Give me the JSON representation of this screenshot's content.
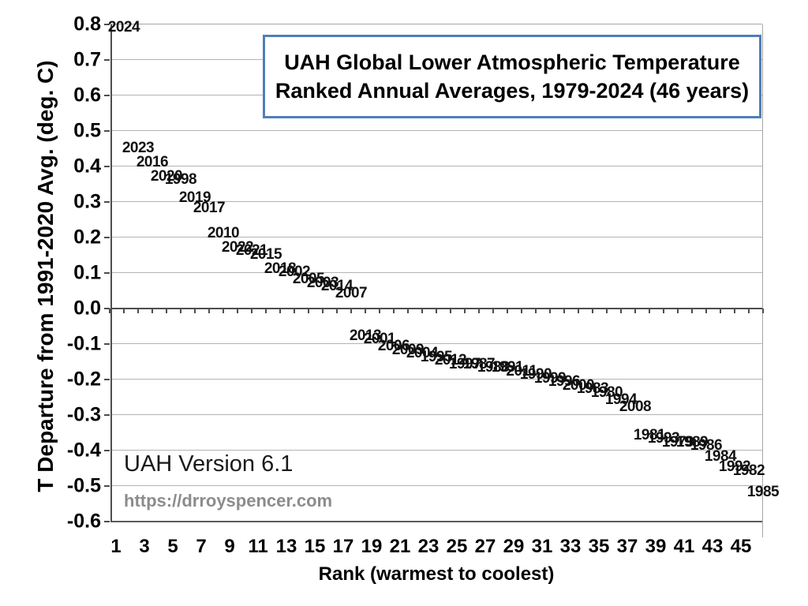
{
  "chart_data": {
    "type": "bar",
    "title_line1": "UAH Global Lower Atmospheric Temperature",
    "title_line2": "Ranked Annual Averages, 1979-2024 (46 years)",
    "xlabel": "Rank (warmest to coolest)",
    "ylabel": "T Departure from 1991-2020 Avg. (deg. C)",
    "ylim": [
      -0.6,
      0.8
    ],
    "ytick_step": 0.1,
    "xtick_labels": [
      1,
      3,
      5,
      7,
      9,
      11,
      13,
      15,
      17,
      19,
      21,
      23,
      25,
      27,
      29,
      31,
      33,
      35,
      37,
      39,
      41,
      43,
      45
    ],
    "grid": true,
    "legend": false,
    "bar_color": "#8a8a8a",
    "title_border_color": "#4e7fbb",
    "annotations": {
      "version": "UAH Version 6.1",
      "url": "https://drroyspencer.com"
    },
    "points": [
      {
        "rank": 1,
        "year": "2024",
        "value": 0.77
      },
      {
        "rank": 2,
        "year": "2023",
        "value": 0.43
      },
      {
        "rank": 3,
        "year": "2016",
        "value": 0.39
      },
      {
        "rank": 4,
        "year": "2020",
        "value": 0.35
      },
      {
        "rank": 5,
        "year": "1998",
        "value": 0.34
      },
      {
        "rank": 6,
        "year": "2019",
        "value": 0.29
      },
      {
        "rank": 7,
        "year": "2017",
        "value": 0.26
      },
      {
        "rank": 8,
        "year": "2010",
        "value": 0.19
      },
      {
        "rank": 9,
        "year": "2022",
        "value": 0.15
      },
      {
        "rank": 10,
        "year": "2021",
        "value": 0.14
      },
      {
        "rank": 11,
        "year": "2015",
        "value": 0.13
      },
      {
        "rank": 12,
        "year": "2018",
        "value": 0.09
      },
      {
        "rank": 13,
        "year": "2002",
        "value": 0.08
      },
      {
        "rank": 14,
        "year": "2005",
        "value": 0.06
      },
      {
        "rank": 15,
        "year": "2003",
        "value": 0.05
      },
      {
        "rank": 16,
        "year": "2014",
        "value": 0.04
      },
      {
        "rank": 17,
        "year": "2007",
        "value": 0.02
      },
      {
        "rank": 18,
        "year": "2013",
        "value": -0.05
      },
      {
        "rank": 19,
        "year": "2001",
        "value": -0.06
      },
      {
        "rank": 20,
        "year": "2006",
        "value": -0.08
      },
      {
        "rank": 21,
        "year": "2009",
        "value": -0.09
      },
      {
        "rank": 22,
        "year": "2004",
        "value": -0.1
      },
      {
        "rank": 23,
        "year": "1995",
        "value": -0.11
      },
      {
        "rank": 24,
        "year": "2012",
        "value": -0.12
      },
      {
        "rank": 25,
        "year": "1997",
        "value": -0.13
      },
      {
        "rank": 26,
        "year": "1987",
        "value": -0.13
      },
      {
        "rank": 27,
        "year": "1988",
        "value": -0.14
      },
      {
        "rank": 28,
        "year": "1991",
        "value": -0.14
      },
      {
        "rank": 29,
        "year": "2011",
        "value": -0.15
      },
      {
        "rank": 30,
        "year": "1990",
        "value": -0.16
      },
      {
        "rank": 31,
        "year": "1999",
        "value": -0.17
      },
      {
        "rank": 32,
        "year": "1996",
        "value": -0.18
      },
      {
        "rank": 33,
        "year": "2000",
        "value": -0.19
      },
      {
        "rank": 34,
        "year": "1983",
        "value": -0.2
      },
      {
        "rank": 35,
        "year": "1980",
        "value": -0.21
      },
      {
        "rank": 36,
        "year": "1994",
        "value": -0.23
      },
      {
        "rank": 37,
        "year": "2008",
        "value": -0.25
      },
      {
        "rank": 38,
        "year": "1981",
        "value": -0.33
      },
      {
        "rank": 39,
        "year": "1993",
        "value": -0.34
      },
      {
        "rank": 40,
        "year": "1979",
        "value": -0.35
      },
      {
        "rank": 41,
        "year": "1989",
        "value": -0.35
      },
      {
        "rank": 42,
        "year": "1986",
        "value": -0.36
      },
      {
        "rank": 43,
        "year": "1984",
        "value": -0.39
      },
      {
        "rank": 44,
        "year": "1992",
        "value": -0.42
      },
      {
        "rank": 45,
        "year": "1982",
        "value": -0.43
      },
      {
        "rank": 46,
        "year": "1985",
        "value": -0.49
      }
    ]
  }
}
